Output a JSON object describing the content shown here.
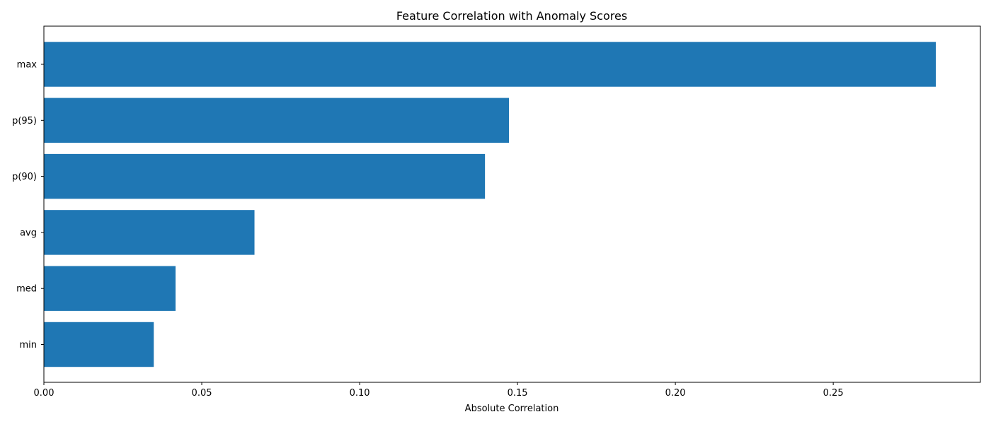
{
  "chart_data": {
    "type": "bar",
    "orientation": "horizontal",
    "title": "Feature Correlation with Anomaly Scores",
    "xlabel": "Absolute Correlation",
    "ylabel": "",
    "categories": [
      "max",
      "p(95)",
      "p(90)",
      "avg",
      "med",
      "min"
    ],
    "values": [
      0.2825,
      0.1473,
      0.1397,
      0.0667,
      0.0417,
      0.0348
    ],
    "xlim": [
      0,
      0.2966
    ],
    "xticks": [
      0.0,
      0.05,
      0.1,
      0.15,
      0.2,
      0.25
    ],
    "xtick_labels": [
      "0.00",
      "0.05",
      "0.10",
      "0.15",
      "0.20",
      "0.25"
    ],
    "grid": false,
    "bar_color": "#1f77b4"
  }
}
